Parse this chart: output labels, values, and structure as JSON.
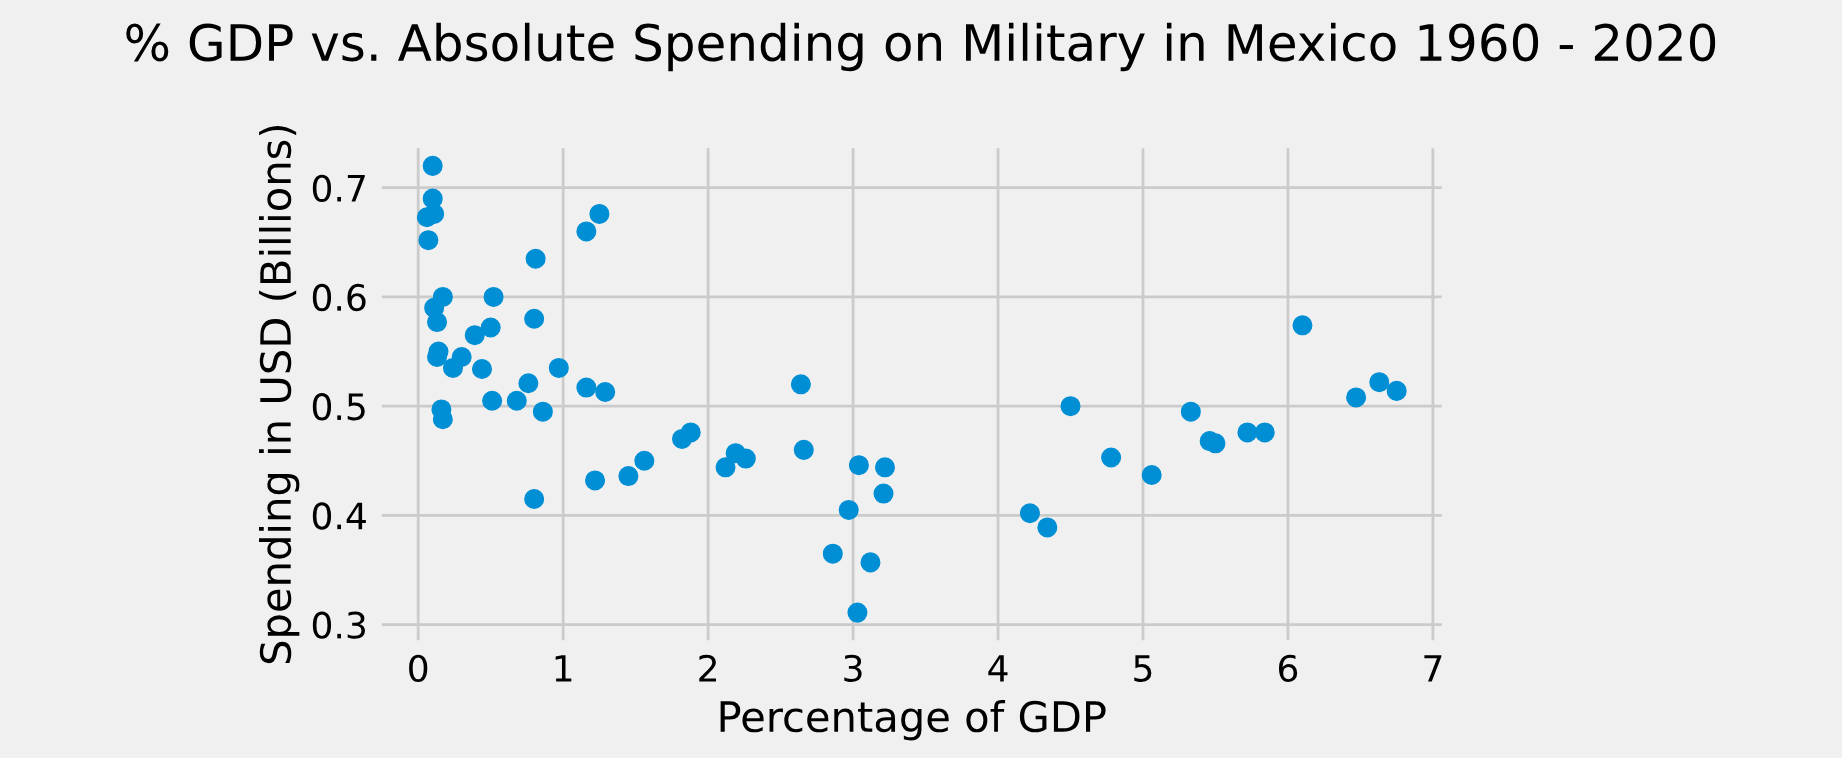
{
  "chart_data": {
    "type": "scatter",
    "title": "% GDP vs. Absolute Spending on Military in Mexico 1960 - 2020",
    "xlabel": "Percentage of GDP",
    "ylabel": "Spending in USD (Billions)",
    "xlim": [
      -0.28,
      7.09
    ],
    "ylim": [
      0.282,
      0.74
    ],
    "xticks": [
      0,
      1,
      2,
      3,
      4,
      5,
      6,
      7
    ],
    "yticks": [
      0.3,
      0.4,
      0.5,
      0.6,
      0.7
    ],
    "grid": true,
    "marker": "circle",
    "series": [
      {
        "color": "#008fd5",
        "x": [
          0.1,
          0.1,
          0.11,
          0.06,
          0.07,
          0.17,
          0.11,
          0.13,
          0.14,
          0.13,
          0.16,
          0.17,
          0.24,
          0.3,
          0.39,
          0.5,
          0.52,
          0.44,
          0.51,
          0.68,
          0.76,
          0.81,
          0.8,
          0.86,
          0.8,
          0.97,
          1.16,
          1.25,
          1.16,
          1.29,
          1.22,
          1.45,
          1.56,
          1.82,
          1.88,
          2.12,
          2.19,
          2.26,
          2.64,
          2.66,
          2.86,
          2.97,
          3.04,
          3.21,
          3.22,
          3.12,
          3.03,
          4.22,
          4.34,
          4.5,
          4.78,
          5.06,
          5.33,
          5.46,
          5.5,
          5.72,
          5.84,
          6.1,
          6.47,
          6.63,
          6.75
        ],
        "values": [
          0.72,
          0.69,
          0.676,
          0.673,
          0.652,
          0.6,
          0.59,
          0.577,
          0.55,
          0.545,
          0.497,
          0.488,
          0.535,
          0.545,
          0.565,
          0.572,
          0.6,
          0.534,
          0.505,
          0.505,
          0.521,
          0.635,
          0.58,
          0.495,
          0.415,
          0.535,
          0.66,
          0.676,
          0.517,
          0.513,
          0.432,
          0.436,
          0.45,
          0.47,
          0.476,
          0.444,
          0.457,
          0.452,
          0.52,
          0.46,
          0.365,
          0.405,
          0.446,
          0.42,
          0.444,
          0.357,
          0.311,
          0.402,
          0.389,
          0.5,
          0.453,
          0.437,
          0.495,
          0.468,
          0.466,
          0.476,
          0.476,
          0.574,
          0.508,
          0.522,
          0.514
        ]
      }
    ]
  }
}
